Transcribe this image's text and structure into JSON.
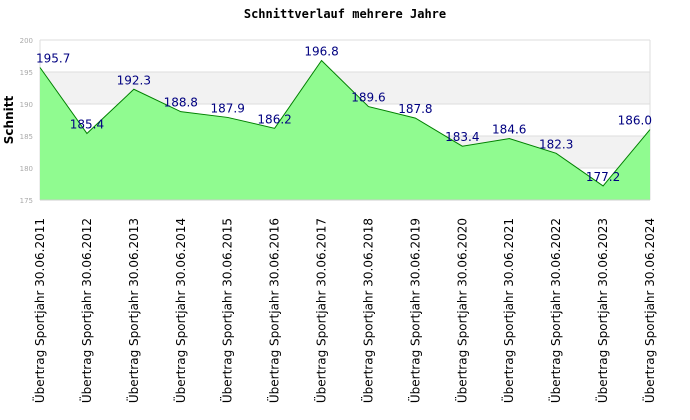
{
  "chart_data": {
    "type": "area",
    "title": "Schnittverlauf mehrere Jahre",
    "ylabel": "Schnitt",
    "xlabel": "",
    "ylim": [
      175,
      200
    ],
    "yticks": [
      175,
      180,
      185,
      190,
      195,
      200
    ],
    "grid": true,
    "legend": "none",
    "categories": [
      "Übertrag Sportjahr 30.06.2011",
      "Übertrag Sportjahr 30.06.2012",
      "Übertrag Sportjahr 30.06.2013",
      "Übertrag Sportjahr 30.06.2014",
      "Übertrag Sportjahr 30.06.2015",
      "Übertrag Sportjahr 30.06.2016",
      "Übertrag Sportjahr 30.06.2017",
      "Übertrag Sportjahr 30.06.2018",
      "Übertrag Sportjahr 30.06.2019",
      "Übertrag Sportjahr 30.06.2020",
      "Übertrag Sportjahr 30.06.2021",
      "Übertrag Sportjahr 30.06.2022",
      "Übertrag Sportjahr 30.06.2023",
      "Übertrag Sportjahr 30.06.2024"
    ],
    "values": [
      195.7,
      185.4,
      192.3,
      188.8,
      187.9,
      186.2,
      196.8,
      189.6,
      187.8,
      183.4,
      184.6,
      182.3,
      177.2,
      186.0
    ],
    "data_labels": [
      "195.7",
      "185.4",
      "192.3",
      "188.8",
      "187.9",
      "186.2",
      "196.8",
      "189.6",
      "187.8",
      "183.4",
      "184.6",
      "182.3",
      "177.2",
      "186.0"
    ],
    "colors": {
      "fill": "#90fb90",
      "line": "#008000",
      "band": "#f2f2f2",
      "grid": "#dddddd",
      "label": "#000080"
    }
  }
}
